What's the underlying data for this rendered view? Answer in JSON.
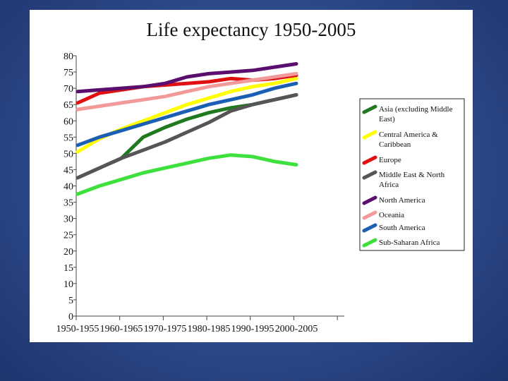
{
  "chart_data": {
    "type": "line",
    "title": "Life expectancy 1950-2005",
    "xlabel": "",
    "ylabel": "",
    "ylim": [
      0,
      80
    ],
    "yticks": [
      0,
      5,
      10,
      15,
      20,
      25,
      30,
      35,
      40,
      45,
      50,
      55,
      60,
      65,
      70,
      75,
      80
    ],
    "categories": [
      "1950-1955",
      "1960-1965",
      "1970-1975",
      "1980-1985",
      "1990-1995",
      "2000-2005"
    ],
    "x": [
      0,
      0.5,
      1,
      1.5,
      2,
      2.5,
      3,
      3.5,
      4,
      4.5,
      5
    ],
    "legend_position": "right",
    "grid": false,
    "series": [
      {
        "name": "Asia (excluding Middle East)",
        "color": "#1f7a1f",
        "values": [
          42.5,
          45.5,
          48.5,
          55,
          58,
          60.5,
          62.5,
          64,
          65,
          66.5,
          68
        ]
      },
      {
        "name": "Central America & Caribbean",
        "color": "#ffff00",
        "values": [
          50.5,
          54.5,
          57.5,
          60,
          62.5,
          65,
          67,
          69,
          70.5,
          71.5,
          73
        ]
      },
      {
        "name": "Europe",
        "color": "#e01010",
        "values": [
          65.5,
          68.5,
          69.5,
          70.5,
          71,
          71.5,
          72,
          73,
          72.5,
          73,
          74
        ]
      },
      {
        "name": "Middle East & North Africa",
        "color": "#555555",
        "values": [
          42.5,
          45.5,
          48.5,
          51,
          53.5,
          56.5,
          59.5,
          63,
          65,
          66.5,
          68
        ]
      },
      {
        "name": "North America",
        "color": "#5a0f6e",
        "values": [
          69,
          69.5,
          70,
          70.5,
          71.5,
          73.5,
          74.5,
          75,
          75.5,
          76.5,
          77.5
        ]
      },
      {
        "name": "Oceania",
        "color": "#f29a9a",
        "values": [
          63.5,
          64.5,
          65.5,
          66.5,
          67.5,
          69,
          70.5,
          71.5,
          72.5,
          73.5,
          74.5
        ]
      },
      {
        "name": "South America",
        "color": "#1a5fb4",
        "values": [
          52.5,
          55,
          57,
          59,
          61,
          63,
          65,
          66.5,
          68,
          70,
          71.5
        ]
      },
      {
        "name": "Sub-Saharan Africa",
        "color": "#3de03d",
        "values": [
          37.5,
          40,
          42,
          44,
          45.5,
          47,
          48.5,
          49.5,
          49,
          47.5,
          46.5
        ]
      }
    ]
  }
}
